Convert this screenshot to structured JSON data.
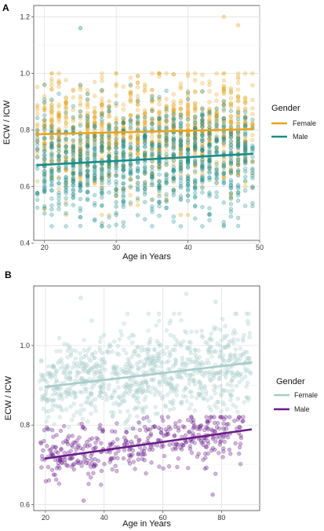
{
  "chart_data": [
    {
      "panel": "A",
      "type": "scatter",
      "xlabel": "Age in Years",
      "ylabel": "ECW / ICW",
      "xlim": [
        18.5,
        50
      ],
      "ylim": [
        0.41,
        1.24
      ],
      "xticks": [
        20,
        30,
        40,
        50
      ],
      "yticks": [
        0.4,
        0.6,
        0.8,
        1.0,
        1.2
      ],
      "ytick_labels": [
        "0.4",
        "0.6",
        "0.8",
        "1.0",
        "1.2"
      ],
      "grid": true,
      "legend": {
        "title": "Gender",
        "position": "right"
      },
      "series": [
        {
          "name": "Female",
          "color": "#E5A521",
          "trend": {
            "x": [
              19,
              49
            ],
            "y": [
              0.785,
              0.803
            ]
          },
          "spread": {
            "x": [
              19,
              49
            ],
            "y_range": [
              0.5,
              1.0
            ]
          }
        },
        {
          "name": "Male",
          "color": "#1B8B8B",
          "trend": {
            "x": [
              19,
              49
            ],
            "y": [
              0.676,
              0.716
            ]
          },
          "spread": {
            "x": [
              19,
              49
            ],
            "y_range": [
              0.46,
              0.96
            ]
          }
        }
      ],
      "outliers": [
        {
          "series": "Male",
          "x": 25,
          "y": 1.16
        },
        {
          "series": "Female",
          "x": 45,
          "y": 1.2
        },
        {
          "series": "Female",
          "x": 47,
          "y": 1.17
        }
      ]
    },
    {
      "panel": "B",
      "type": "scatter",
      "xlabel": "Age in Years",
      "ylabel": "ECW / ICW",
      "xlim": [
        16,
        93
      ],
      "ylim": [
        0.585,
        1.15
      ],
      "xticks": [
        20,
        40,
        60,
        80
      ],
      "yticks": [
        0.6,
        0.8,
        1.0
      ],
      "ytick_labels": [
        "0.6",
        "0.8",
        "1.0"
      ],
      "grid": true,
      "legend": {
        "title": "Gender",
        "position": "right"
      },
      "series": [
        {
          "name": "Female",
          "color": "#A8CCCA",
          "trend": {
            "x": [
              20,
              90
            ],
            "y": [
              0.896,
              0.957
            ]
          },
          "spread": {
            "x": [
              18,
              90
            ],
            "y_range": [
              0.79,
              1.08
            ]
          }
        },
        {
          "name": "Male",
          "color": "#6A1B8A",
          "trend": {
            "x": [
              20,
              90
            ],
            "y": [
              0.716,
              0.789
            ]
          },
          "spread": {
            "x": [
              18,
              88
            ],
            "y_range": [
              0.65,
              0.82
            ]
          }
        }
      ],
      "outliers": [
        {
          "series": "Female",
          "x": 32,
          "y": 1.12
        },
        {
          "series": "Female",
          "x": 68,
          "y": 1.13
        },
        {
          "series": "Female",
          "x": 78,
          "y": 1.11
        },
        {
          "series": "Male",
          "x": 33,
          "y": 0.61
        },
        {
          "series": "Male",
          "x": 77,
          "y": 0.625
        }
      ]
    }
  ]
}
